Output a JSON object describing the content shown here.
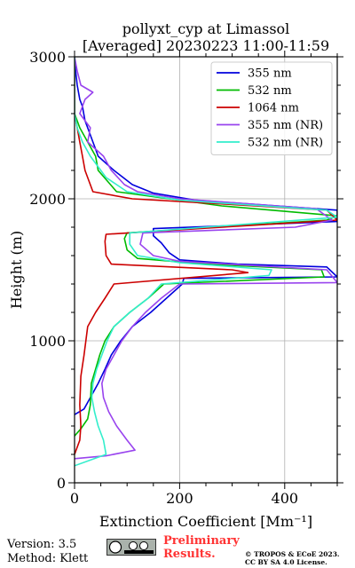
{
  "chart_data": {
    "type": "line",
    "title": "pollyxt_cyp at Limassol",
    "subtitle": "[Averaged] 20230223 11:00-11:59",
    "xlabel": "Extinction Coefficient [Mm⁻¹]",
    "ylabel": "Height (m)",
    "xlim": [
      0,
      500
    ],
    "ylim": [
      0,
      3000
    ],
    "xticks": [
      0,
      200,
      400
    ],
    "yticks": [
      0,
      1000,
      2000,
      3000
    ],
    "grid": true,
    "legend_position": "top-right",
    "series": [
      {
        "name": "355 nm",
        "color": "#0000dd",
        "points": [
          [
            0,
            480
          ],
          [
            18,
            520
          ],
          [
            30,
            600
          ],
          [
            45,
            700
          ],
          [
            58,
            800
          ],
          [
            70,
            900
          ],
          [
            88,
            1000
          ],
          [
            110,
            1100
          ],
          [
            145,
            1200
          ],
          [
            175,
            1300
          ],
          [
            205,
            1400
          ],
          [
            208,
            1440
          ],
          [
            500,
            1450
          ],
          [
            480,
            1520
          ],
          [
            310,
            1540
          ],
          [
            200,
            1570
          ],
          [
            180,
            1620
          ],
          [
            165,
            1690
          ],
          [
            150,
            1740
          ],
          [
            150,
            1790
          ],
          [
            500,
            1840
          ],
          [
            500,
            1920
          ],
          [
            230,
            1990
          ],
          [
            150,
            2040
          ],
          [
            110,
            2100
          ],
          [
            75,
            2200
          ],
          [
            45,
            2300
          ],
          [
            40,
            2350
          ],
          [
            35,
            2400
          ],
          [
            25,
            2500
          ],
          [
            20,
            2550
          ],
          [
            15,
            2650
          ],
          [
            10,
            2700
          ],
          [
            5,
            2800
          ],
          [
            2,
            2900
          ],
          [
            0,
            3000
          ]
        ]
      },
      {
        "name": "532 nm",
        "color": "#00bb00",
        "points": [
          [
            0,
            330
          ],
          [
            12,
            380
          ],
          [
            25,
            450
          ],
          [
            30,
            550
          ],
          [
            32,
            700
          ],
          [
            40,
            800
          ],
          [
            48,
            900
          ],
          [
            58,
            1000
          ],
          [
            75,
            1100
          ],
          [
            105,
            1200
          ],
          [
            140,
            1300
          ],
          [
            170,
            1400
          ],
          [
            475,
            1450
          ],
          [
            470,
            1500
          ],
          [
            250,
            1540
          ],
          [
            120,
            1580
          ],
          [
            100,
            1640
          ],
          [
            95,
            1720
          ],
          [
            100,
            1760
          ],
          [
            480,
            1850
          ],
          [
            500,
            1880
          ],
          [
            280,
            1950
          ],
          [
            80,
            2050
          ],
          [
            45,
            2200
          ],
          [
            40,
            2300
          ],
          [
            25,
            2400
          ],
          [
            10,
            2500
          ],
          [
            0,
            2600
          ],
          [
            0,
            3000
          ]
        ]
      },
      {
        "name": "1064 nm",
        "color": "#cc0000",
        "points": [
          [
            0,
            200
          ],
          [
            10,
            300
          ],
          [
            12,
            400
          ],
          [
            10,
            550
          ],
          [
            12,
            750
          ],
          [
            18,
            900
          ],
          [
            25,
            1100
          ],
          [
            40,
            1200
          ],
          [
            58,
            1300
          ],
          [
            75,
            1400
          ],
          [
            330,
            1480
          ],
          [
            300,
            1500
          ],
          [
            70,
            1540
          ],
          [
            60,
            1600
          ],
          [
            58,
            1700
          ],
          [
            60,
            1750
          ],
          [
            500,
            1850
          ],
          [
            480,
            1920
          ],
          [
            300,
            1960
          ],
          [
            110,
            2000
          ],
          [
            35,
            2050
          ],
          [
            20,
            2200
          ],
          [
            15,
            2300
          ],
          [
            10,
            2400
          ],
          [
            5,
            2500
          ],
          [
            0,
            2600
          ],
          [
            0,
            3000
          ]
        ]
      },
      {
        "name": "355 nm (NR)",
        "color": "#9944ee",
        "points": [
          [
            0,
            170
          ],
          [
            60,
            190
          ],
          [
            115,
            230
          ],
          [
            100,
            300
          ],
          [
            80,
            400
          ],
          [
            65,
            500
          ],
          [
            55,
            600
          ],
          [
            52,
            700
          ],
          [
            60,
            800
          ],
          [
            75,
            900
          ],
          [
            90,
            1000
          ],
          [
            110,
            1100
          ],
          [
            135,
            1200
          ],
          [
            165,
            1300
          ],
          [
            200,
            1400
          ],
          [
            500,
            1410
          ],
          [
            480,
            1500
          ],
          [
            200,
            1560
          ],
          [
            150,
            1600
          ],
          [
            125,
            1680
          ],
          [
            130,
            1760
          ],
          [
            420,
            1800
          ],
          [
            490,
            1850
          ],
          [
            460,
            1930
          ],
          [
            200,
            2000
          ],
          [
            120,
            2050
          ],
          [
            95,
            2100
          ],
          [
            70,
            2200
          ],
          [
            55,
            2300
          ],
          [
            40,
            2350
          ],
          [
            25,
            2400
          ],
          [
            30,
            2500
          ],
          [
            10,
            2600
          ],
          [
            20,
            2700
          ],
          [
            35,
            2750
          ],
          [
            12,
            2800
          ],
          [
            5,
            2900
          ],
          [
            0,
            3000
          ]
        ]
      },
      {
        "name": "532 nm (NR)",
        "color": "#33eecc",
        "points": [
          [
            0,
            120
          ],
          [
            60,
            200
          ],
          [
            55,
            300
          ],
          [
            45,
            400
          ],
          [
            38,
            500
          ],
          [
            33,
            600
          ],
          [
            35,
            700
          ],
          [
            42,
            800
          ],
          [
            52,
            900
          ],
          [
            62,
            1000
          ],
          [
            75,
            1100
          ],
          [
            105,
            1200
          ],
          [
            140,
            1300
          ],
          [
            165,
            1400
          ],
          [
            370,
            1460
          ],
          [
            375,
            1500
          ],
          [
            200,
            1550
          ],
          [
            120,
            1600
          ],
          [
            105,
            1680
          ],
          [
            105,
            1760
          ],
          [
            500,
            1870
          ],
          [
            480,
            1920
          ],
          [
            200,
            1990
          ],
          [
            100,
            2050
          ],
          [
            60,
            2150
          ],
          [
            30,
            2300
          ],
          [
            15,
            2400
          ],
          [
            5,
            2500
          ],
          [
            0,
            2600
          ],
          [
            0,
            3000
          ]
        ]
      }
    ]
  },
  "footer": {
    "version": "Version: 3.5",
    "method": "Method: Klett",
    "preliminary_line1": "Preliminary",
    "preliminary_line2": "Results.",
    "copyright_line1": "© TROPOS & ECoE 2023.",
    "copyright_line2": "CC BY SA 4.0 License."
  }
}
